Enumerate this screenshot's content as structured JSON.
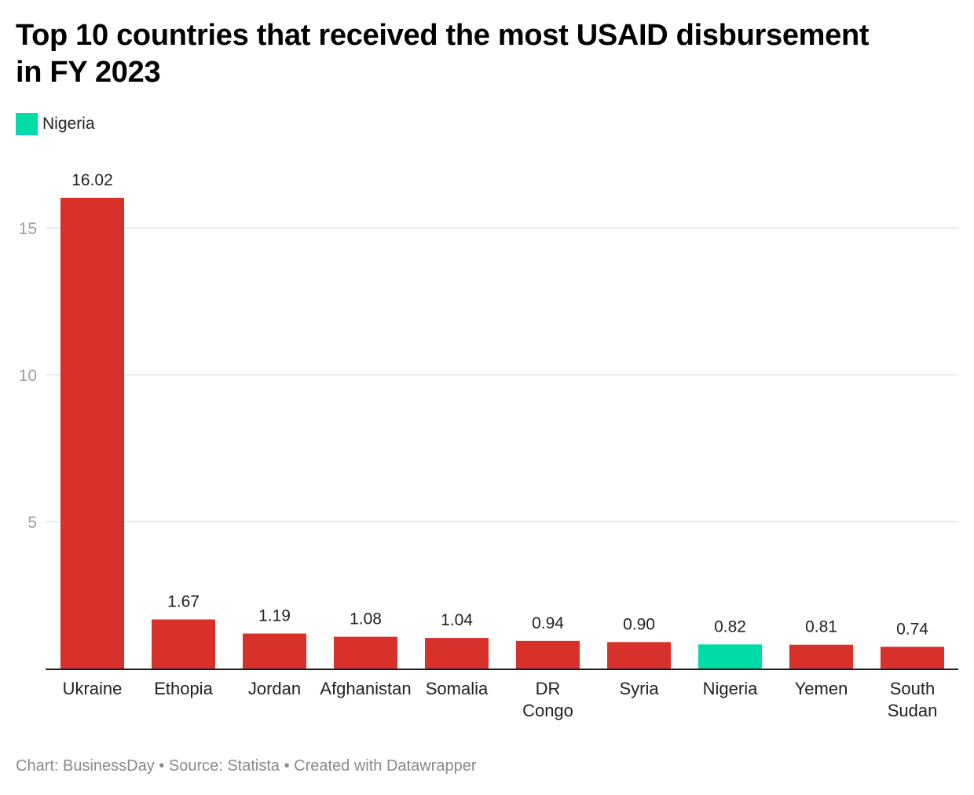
{
  "chart_data": {
    "type": "bar",
    "title": "Top 10 countries that received the most USAID disbursement in FY 2023",
    "xlabel": "",
    "ylabel": "",
    "ylim": [
      0,
      16.02
    ],
    "yticks": [
      5,
      10,
      15
    ],
    "grid": true,
    "legend": {
      "position": "top-left",
      "entries": [
        {
          "label": "Nigeria",
          "color": "#00dca5"
        }
      ]
    },
    "categories": [
      "Ukraine",
      "Ethiopia",
      "Jordan",
      "Afghanistan",
      "Somalia",
      "DR Congo",
      "Syria",
      "Nigeria",
      "Yemen",
      "South Sudan"
    ],
    "category_lines": [
      [
        "Ukraine"
      ],
      [
        "Ethopia"
      ],
      [
        "Jordan"
      ],
      [
        "Afghanistan"
      ],
      [
        "Somalia"
      ],
      [
        "DR",
        "Congo"
      ],
      [
        "Syria"
      ],
      [
        "Nigeria"
      ],
      [
        "Yemen"
      ],
      [
        "South",
        "Sudan"
      ]
    ],
    "values": [
      16.02,
      1.67,
      1.19,
      1.08,
      1.04,
      0.94,
      0.9,
      0.82,
      0.81,
      0.74
    ],
    "value_labels": [
      "16.02",
      "1.67",
      "1.19",
      "1.08",
      "1.04",
      "0.94",
      "0.90",
      "0.82",
      "0.81",
      "0.74"
    ],
    "highlight": "Nigeria",
    "colors": {
      "default": "#d8312c",
      "highlight": "#00dca5"
    }
  },
  "header": {
    "title": "Top 10 countries that received the most USAID disbursement in FY 2023"
  },
  "legend": {
    "label": "Nigeria",
    "color": "#00dca5"
  },
  "footer": {
    "text": "Chart: BusinessDay • Source: Statista • Created with Datawrapper"
  }
}
